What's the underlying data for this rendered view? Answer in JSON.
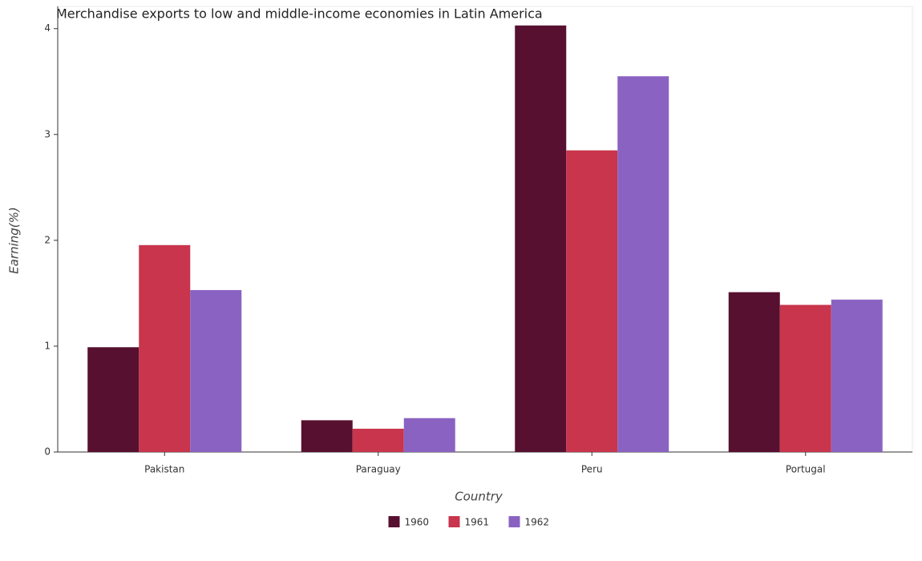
{
  "chart_data": {
    "type": "bar",
    "title": "Merchandise exports to low and middle-income economies in Latin America",
    "x_label": "Country",
    "y_label": "Earning(%)",
    "categories": [
      "Pakistan",
      "Paraguay",
      "Peru",
      "Portugal"
    ],
    "series": [
      {
        "name": "1960",
        "color": "#57102f",
        "values": [
          0.99,
          0.3,
          4.03,
          1.51
        ]
      },
      {
        "name": "1961",
        "color": "#c8354c",
        "values": [
          1.955,
          0.22,
          2.85,
          1.39
        ]
      },
      {
        "name": "1962",
        "color": "#8a63c2",
        "values": [
          1.53,
          0.32,
          3.55,
          1.44
        ]
      }
    ],
    "ylim": [
      0,
      4.21
    ],
    "yticks": [
      0,
      1,
      2,
      3,
      4
    ],
    "grid": false,
    "legend": "bottom"
  }
}
